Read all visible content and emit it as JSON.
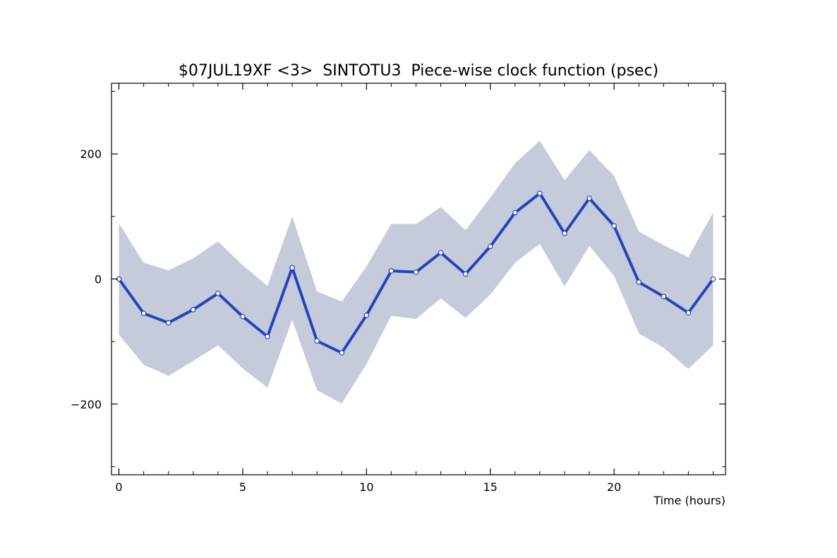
{
  "chart_data": {
    "type": "line",
    "title": "$07JUL19XF <3>  SINTOTU3  Piece-wise clock function (psec)",
    "xlabel": "Time (hours)",
    "ylabel": "",
    "xlim": [
      -0.3,
      24.5
    ],
    "ylim": [
      -313,
      313
    ],
    "x_ticks": [
      0,
      5,
      10,
      15,
      20
    ],
    "x_tick_labels": [
      "0",
      "5",
      "10",
      "15",
      "20"
    ],
    "y_ticks": [
      -200,
      0,
      200
    ],
    "y_tick_labels": [
      "−200",
      "0",
      "200"
    ],
    "y_minor_ticks": [
      -300,
      -100,
      100,
      300
    ],
    "grid": false,
    "series": [
      {
        "x": [
          0,
          1,
          2,
          3,
          4,
          5,
          6,
          7,
          8,
          9,
          10,
          11,
          12,
          13,
          14,
          15,
          16,
          17,
          18,
          19,
          20,
          21,
          22,
          23,
          24
        ],
        "values": [
          0,
          -55,
          -70,
          -49,
          -23,
          -60,
          -92,
          18,
          -99,
          -118,
          -58,
          13,
          11,
          42,
          8,
          52,
          106,
          137,
          73,
          129,
          85,
          -5,
          -28,
          -54,
          0
        ],
        "upper": [
          89,
          26,
          14,
          33,
          60,
          22,
          -11,
          100,
          -20,
          -36,
          20,
          88,
          88,
          115,
          78,
          130,
          185,
          221,
          158,
          206,
          165,
          76,
          54,
          35,
          106
        ],
        "lower": [
          -89,
          -137,
          -155,
          -131,
          -106,
          -143,
          -174,
          -65,
          -178,
          -199,
          -136,
          -59,
          -64,
          -31,
          -62,
          -25,
          26,
          56,
          -12,
          53,
          5,
          -87,
          -110,
          -144,
          -106
        ]
      }
    ],
    "colors": {
      "line": "#2244bb",
      "band": "#c6cbdb",
      "marker_fill": "#ffffff",
      "axis": "#000000"
    }
  }
}
